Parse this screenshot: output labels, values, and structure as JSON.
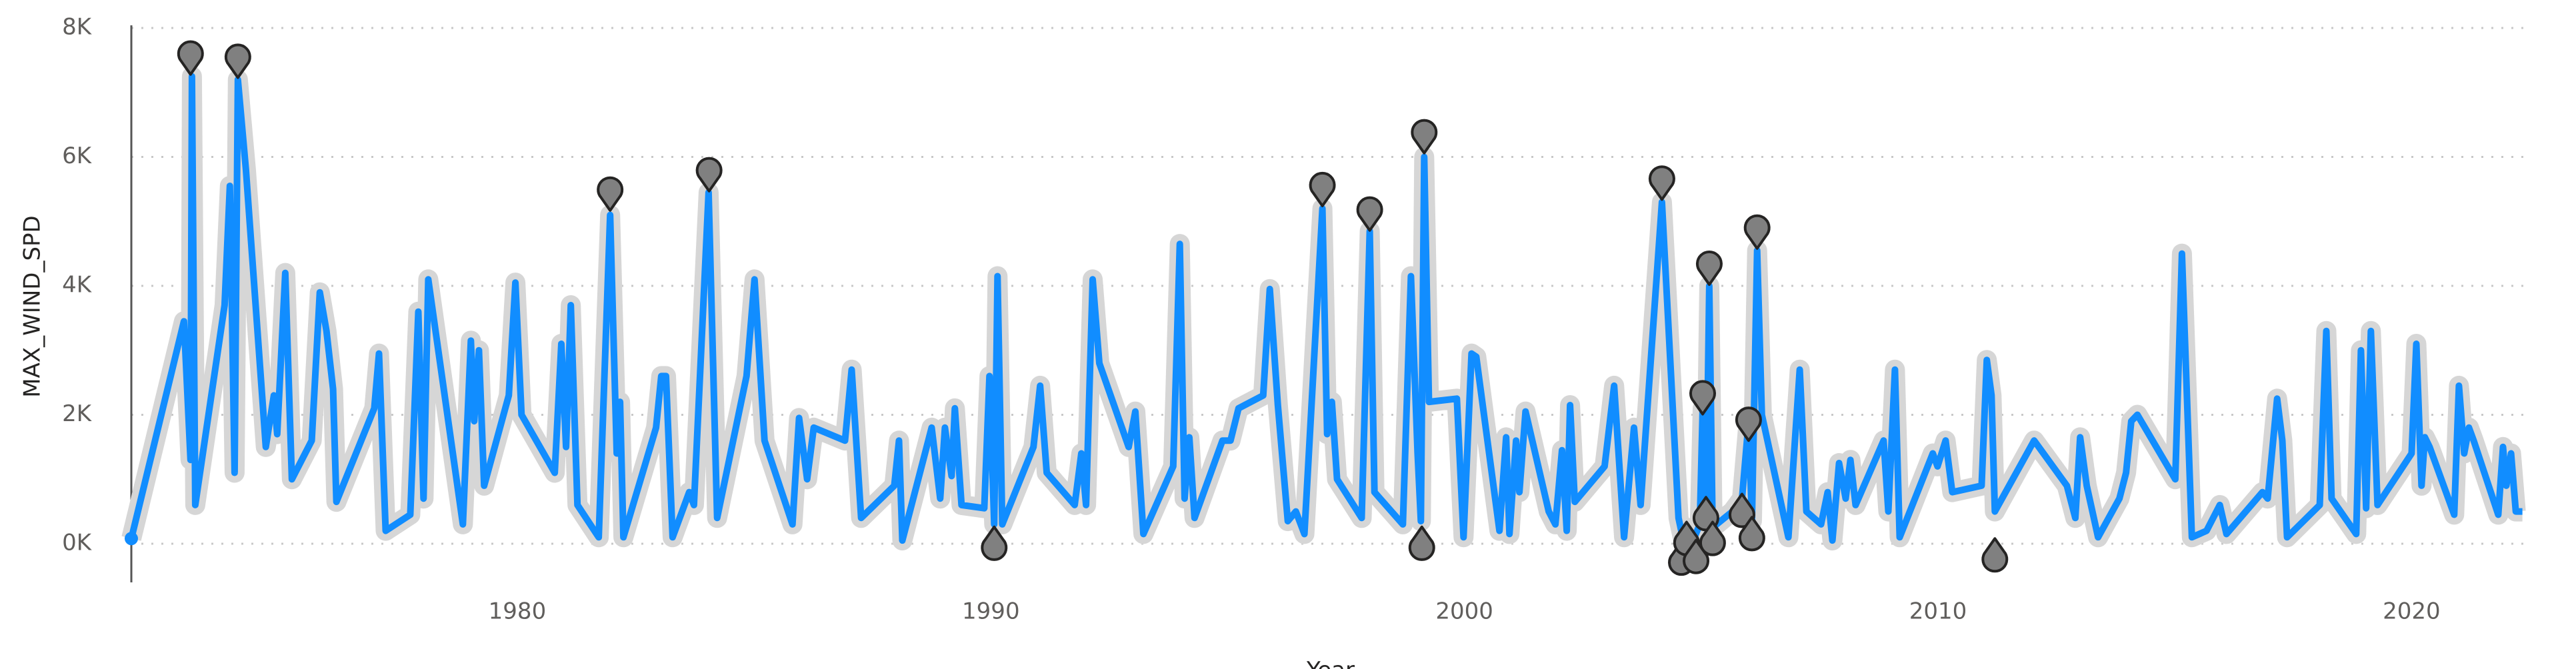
{
  "chart_data": {
    "type": "line",
    "x_label": "Year",
    "y_label": "MAX_WIND_SPD",
    "color": "#118DFF",
    "x": [
      1971.85,
      1972.96,
      1973.1,
      1973.13,
      1973.2,
      1973.82,
      1973.93,
      1974.03,
      1974.1,
      1974.27,
      1974.69,
      1974.86,
      1974.93,
      1975.1,
      1975.24,
      1975.66,
      1975.83,
      1975.97,
      1976.11,
      1976.18,
      1976.98,
      1977.08,
      1977.22,
      1977.74,
      1977.91,
      1978.02,
      1978.12,
      1978.85,
      1979.02,
      1979.09,
      1979.19,
      1979.3,
      1979.82,
      1979.96,
      1980.09,
      1980.79,
      1980.93,
      1981.03,
      1981.13,
      1981.27,
      1981.72,
      1981.96,
      1982.1,
      1982.17,
      1982.24,
      1982.93,
      1983.04,
      1983.14,
      1983.28,
      1983.63,
      1983.73,
      1984.04,
      1984.22,
      1984.84,
      1985.01,
      1985.22,
      1985.81,
      1985.95,
      1986.12,
      1986.26,
      1986.92,
      1987.06,
      1987.26,
      1987.96,
      1988.06,
      1988.13,
      1988.75,
      1988.93,
      1989.03,
      1989.17,
      1989.24,
      1989.38,
      1989.86,
      1989.97,
      1990.07,
      1990.14,
      1990.24,
      1990.9,
      1991.04,
      1991.18,
      1991.77,
      1991.91,
      1992.01,
      1992.15,
      1992.29,
      1992.91,
      1993.05,
      1993.22,
      1993.85,
      1993.99,
      1994.09,
      1994.19,
      1994.3,
      1994.89,
      1995.06,
      1995.23,
      1995.75,
      1995.89,
      1996.06,
      1996.27,
      1996.44,
      1996.62,
      1997.0,
      1997.1,
      1997.2,
      1997.31,
      1997.83,
      1998.0,
      1998.1,
      1998.7,
      1998.87,
      1999.01,
      1999.08,
      1999.15,
      1999.25,
      1999.84,
      1999.98,
      2000.15,
      2000.25,
      2000.74,
      2000.88,
      2000.95,
      2001.09,
      2001.16,
      2001.29,
      2001.78,
      2001.92,
      2002.06,
      2002.16,
      2002.23,
      2002.33,
      2002.96,
      2003.16,
      2003.37,
      2003.58,
      2003.72,
      2004.17,
      2004.52,
      2004.62,
      2004.69,
      2004.83,
      2004.97,
      2005.03,
      2005.1,
      2005.17,
      2005.24,
      2005.66,
      2005.86,
      2006.0,
      2006.07,
      2006.18,
      2006.28,
      2006.84,
      2007.08,
      2007.22,
      2007.53,
      2007.67,
      2007.77,
      2007.91,
      2008.05,
      2008.15,
      2008.26,
      2008.85,
      2008.95,
      2009.09,
      2009.19,
      2009.89,
      2009.99,
      2010.16,
      2010.3,
      2010.92,
      2011.03,
      2011.13,
      2011.2,
      2012.03,
      2012.72,
      2012.9,
      2013.0,
      2013.14,
      2013.38,
      2013.83,
      2013.97,
      2014.08,
      2014.21,
      2015.01,
      2015.15,
      2015.36,
      2015.67,
      2015.95,
      2016.09,
      2016.85,
      2016.96,
      2017.16,
      2017.27,
      2017.37,
      2018.06,
      2018.2,
      2018.31,
      2018.83,
      2018.93,
      2019.04,
      2019.14,
      2019.28,
      2020.0,
      2020.1,
      2020.21,
      2020.28,
      2020.38,
      2020.9,
      2021.0,
      2021.11,
      2021.21,
      2021.31,
      2021.83,
      2021.93,
      2022.0,
      2022.1,
      2022.2,
      2022.34
    ],
    "values": [
      80,
      3450,
      1300,
      7250,
      600,
      3700,
      5550,
      1100,
      7200,
      5800,
      1500,
      2300,
      1700,
      4200,
      1000,
      1600,
      3900,
      3300,
      2400,
      650,
      2100,
      2950,
      200,
      450,
      3600,
      700,
      4100,
      300,
      3150,
      1900,
      3000,
      900,
      2300,
      4050,
      2000,
      1100,
      3100,
      1500,
      3700,
      600,
      100,
      5100,
      1400,
      2200,
      100,
      1800,
      2600,
      2600,
      100,
      800,
      600,
      5450,
      400,
      2600,
      4100,
      1600,
      300,
      1950,
      1000,
      1800,
      1600,
      2700,
      400,
      900,
      1600,
      50,
      1800,
      700,
      1800,
      1050,
      2100,
      600,
      550,
      2600,
      300,
      4150,
      300,
      1500,
      2450,
      1100,
      600,
      1400,
      600,
      4100,
      2800,
      1500,
      2050,
      150,
      1200,
      4650,
      700,
      1650,
      400,
      1600,
      1600,
      2100,
      2300,
      3950,
      2150,
      350,
      500,
      150,
      5200,
      1700,
      2200,
      1000,
      400,
      4850,
      800,
      300,
      4150,
      1400,
      350,
      6000,
      2200,
      2250,
      100,
      2950,
      2900,
      200,
      1650,
      150,
      1600,
      800,
      2050,
      500,
      300,
      1450,
      200,
      2150,
      650,
      1200,
      2450,
      100,
      1800,
      600,
      5300,
      400,
      50,
      250,
      50,
      300,
      2100,
      400,
      4000,
      250,
      500,
      700,
      1900,
      350,
      4550,
      2000,
      100,
      2700,
      500,
      300,
      800,
      50,
      1250,
      700,
      1300,
      600,
      1600,
      500,
      2700,
      100,
      1400,
      1200,
      1600,
      800,
      900,
      2850,
      2300,
      500,
      1600,
      900,
      400,
      1650,
      900,
      100,
      700,
      1100,
      1900,
      2000,
      1000,
      4500,
      100,
      200,
      600,
      150,
      800,
      700,
      2250,
      1600,
      100,
      600,
      3300,
      700,
      150,
      3000,
      550,
      3300,
      600,
      1400,
      3100,
      900,
      1650,
      1500,
      450,
      2450,
      1400,
      1800,
      1600,
      450,
      1500,
      900,
      1400,
      500,
      500
    ],
    "anomalies": {
      "color": "#808080",
      "x": [
        1973.1,
        1974.1,
        1981.96,
        1984.05,
        1990.07,
        1997.0,
        1998.0,
        1999.1,
        1999.15,
        2004.17,
        2004.58,
        2004.69,
        2004.89,
        2005.03,
        2005.1,
        2005.17,
        2005.24,
        2005.86,
        2006.0,
        2006.07,
        2006.18,
        2011.2
      ],
      "values": [
        7590,
        7540,
        5480,
        5780,
        -50,
        5550,
        5170,
        -50,
        6370,
        5650,
        -280,
        25,
        -255,
        2320,
        410,
        4330,
        25,
        460,
        1910,
        100,
        4890,
        -230
      ]
    },
    "xlim": [
      1971.85,
      2022.5
    ],
    "xticks": [
      1980,
      1990,
      2000,
      2010,
      2020
    ],
    "ylim": [
      -600,
      8000
    ],
    "yticks": [
      {
        "value": 0,
        "label": "0K"
      },
      {
        "value": 2000,
        "label": "2K"
      },
      {
        "value": 4000,
        "label": "4K"
      },
      {
        "value": 6000,
        "label": "6K"
      },
      {
        "value": 8000,
        "label": "8K"
      }
    ],
    "grid": true
  }
}
